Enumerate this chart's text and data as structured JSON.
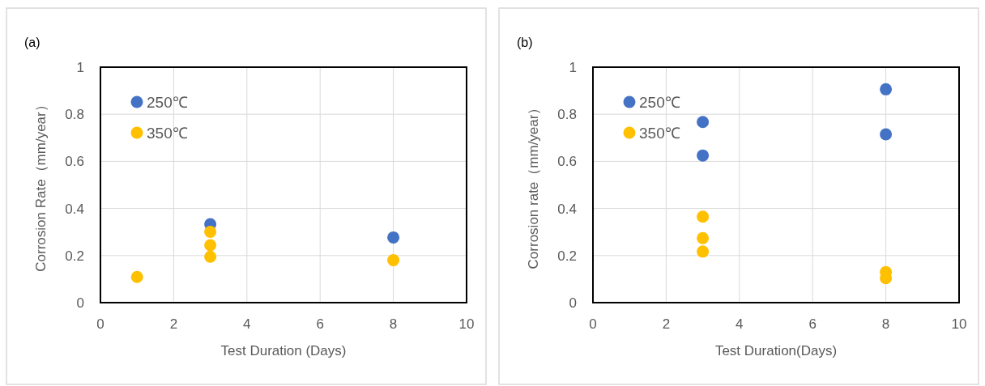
{
  "chart_data": [
    {
      "type": "scatter",
      "title": "(a)",
      "xlabel": "Test Duration (Days)",
      "ylabel": "Corrosion Rate（mm/year）",
      "xlim": [
        0,
        10
      ],
      "xticks": [
        0,
        2,
        4,
        6,
        8,
        10
      ],
      "ylim": [
        0,
        1
      ],
      "yticks": [
        0,
        0.2,
        0.4,
        0.6,
        0.8,
        1
      ],
      "grid": true,
      "legend": "top left",
      "marker": "circle",
      "series": [
        {
          "name": "250℃",
          "color": "#4472c4",
          "x": [
            3,
            8
          ],
          "values": [
            0.333,
            0.277
          ]
        },
        {
          "name": "350℃",
          "color": "#ffc000",
          "x": [
            1,
            3,
            3,
            3,
            8
          ],
          "values": [
            0.109,
            0.301,
            0.244,
            0.195,
            0.18
          ]
        }
      ]
    },
    {
      "type": "scatter",
      "title": "(b)",
      "xlabel": "Test Duration(Days)",
      "ylabel": "Corrosion rate（mm/year）",
      "xlim": [
        0,
        10
      ],
      "xticks": [
        0,
        2,
        4,
        6,
        8,
        10
      ],
      "ylim": [
        0,
        1
      ],
      "yticks": [
        0,
        0.2,
        0.4,
        0.6,
        0.8,
        1
      ],
      "grid": true,
      "legend": "top left",
      "marker": "circle",
      "series": [
        {
          "name": "250℃",
          "color": "#4472c4",
          "x": [
            3,
            3,
            8,
            8
          ],
          "values": [
            0.767,
            0.625,
            0.906,
            0.715
          ]
        },
        {
          "name": "350℃",
          "color": "#ffc000",
          "x": [
            3,
            3,
            3,
            8,
            8
          ],
          "values": [
            0.365,
            0.274,
            0.217,
            0.13,
            0.104
          ]
        }
      ]
    }
  ]
}
